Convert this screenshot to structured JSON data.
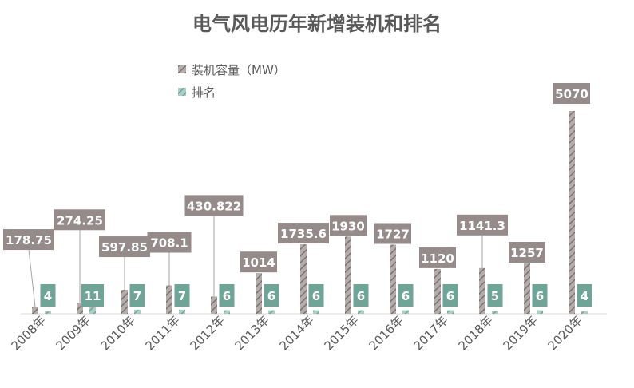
{
  "chart_data": {
    "type": "bar",
    "title": "电气风电历年新增装机和排名",
    "categories": [
      "2008年",
      "2009年",
      "2010年",
      "2011年",
      "2012年",
      "2013年",
      "2014年",
      "2015年",
      "2016年",
      "2017年",
      "2018年",
      "2019年",
      "2020年"
    ],
    "series": [
      {
        "name": "装机容量（MW）",
        "values": [
          178.75,
          274.25,
          597.85,
          708.1,
          430.822,
          1014,
          1735.6,
          1930,
          1727,
          1120,
          1141.3,
          1257,
          5070
        ],
        "value_labels": [
          "178.75",
          "274.25",
          "597.85",
          "708.1",
          "430.822",
          "1014",
          "1735.6",
          "1930",
          "1727",
          "1120",
          "1141.3",
          "1257",
          "5070"
        ],
        "color": "#9a8f8f",
        "label_color": "#958b8b"
      },
      {
        "name": "排名",
        "values": [
          4,
          11,
          7,
          7,
          6,
          6,
          6,
          6,
          6,
          6,
          5,
          6,
          4
        ],
        "value_labels": [
          "4",
          "11",
          "7",
          "7",
          "6",
          "6",
          "6",
          "6",
          "6",
          "6",
          "5",
          "6",
          "4"
        ],
        "color": "#7fb3a8",
        "label_color": "#6fa596"
      }
    ],
    "legend_position": "top-left",
    "grid": false
  }
}
